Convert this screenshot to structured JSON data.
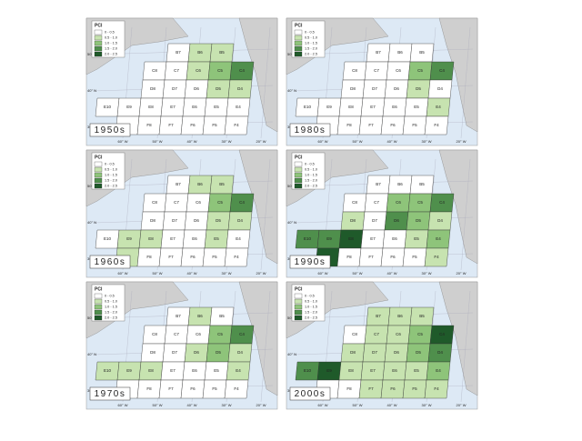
{
  "legend": {
    "title": "PCI",
    "labels": [
      "0 - 0.5",
      "0.5 - 1.0",
      "1.0 - 1.5",
      "1.5 - 2.0",
      "2.0 - 2.5"
    ],
    "colors": [
      "#ffffff",
      "#c7e3b0",
      "#8ec47a",
      "#4f8f4c",
      "#1f5a2a"
    ]
  },
  "axes": {
    "lat": [
      "50° N",
      "40° N",
      "30° N"
    ],
    "lon": [
      "60° W",
      "50° W",
      "40° W",
      "30° W",
      "20° W"
    ]
  },
  "cells": [
    "B7",
    "B6",
    "B5",
    "C8",
    "C7",
    "C6",
    "C5",
    "C4",
    "D8",
    "D7",
    "D6",
    "D5",
    "D4",
    "E10",
    "E9",
    "E8",
    "E7",
    "E6",
    "E5",
    "E4",
    "F9",
    "F8",
    "F7",
    "F6",
    "F5",
    "F4"
  ],
  "panels": [
    {
      "label": "1950s",
      "classes": [
        0,
        1,
        1,
        0,
        0,
        1,
        2,
        3,
        0,
        0,
        0,
        1,
        1,
        0,
        0,
        0,
        0,
        0,
        0,
        0,
        0,
        0,
        0,
        0,
        0,
        0
      ]
    },
    {
      "label": "1960s",
      "classes": [
        0,
        1,
        1,
        0,
        0,
        0,
        2,
        3,
        0,
        0,
        0,
        1,
        1,
        0,
        1,
        1,
        0,
        0,
        1,
        0,
        1,
        0,
        0,
        0,
        0,
        0
      ]
    },
    {
      "label": "1970s",
      "classes": [
        0,
        1,
        0,
        0,
        0,
        0,
        2,
        3,
        0,
        0,
        1,
        2,
        1,
        1,
        1,
        1,
        0,
        0,
        0,
        1,
        0,
        0,
        0,
        0,
        0,
        0
      ]
    },
    {
      "label": "1980s",
      "classes": [
        0,
        0,
        0,
        0,
        0,
        0,
        2,
        3,
        0,
        0,
        0,
        1,
        0,
        0,
        0,
        0,
        0,
        0,
        0,
        1,
        0,
        0,
        0,
        0,
        0,
        0
      ]
    },
    {
      "label": "1990s",
      "classes": [
        0,
        0,
        0,
        0,
        0,
        2,
        2,
        3,
        1,
        0,
        3,
        2,
        1,
        3,
        3,
        4,
        0,
        0,
        1,
        2,
        4,
        0,
        0,
        0,
        0,
        1
      ]
    },
    {
      "label": "2000s",
      "classes": [
        1,
        1,
        1,
        0,
        1,
        1,
        2,
        4,
        1,
        1,
        1,
        2,
        3,
        3,
        4,
        1,
        1,
        1,
        1,
        2,
        0,
        0,
        1,
        1,
        1,
        1
      ]
    }
  ]
}
